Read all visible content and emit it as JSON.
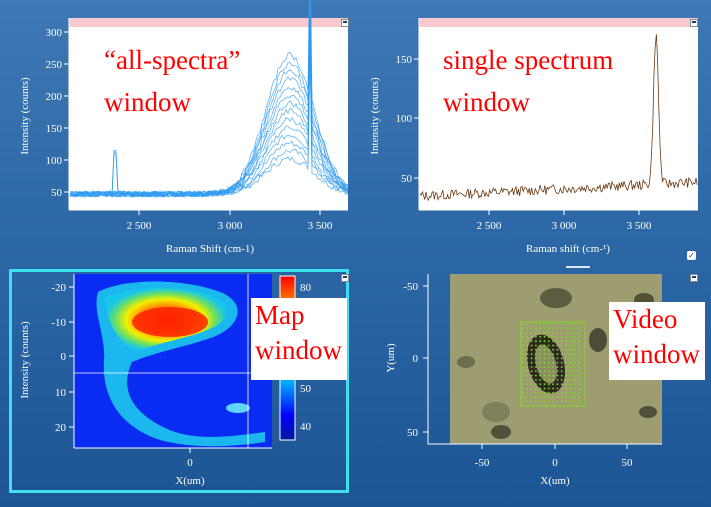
{
  "windows": {
    "all_spectra": {
      "label_line1": "“all-spectra”",
      "label_line2": "window",
      "x_axis_label": "Raman Shift (cm-1)",
      "y_axis_label": "Intensity (counts)",
      "x_ticks": [
        "2 500",
        "3 000",
        "3 500"
      ],
      "y_ticks": [
        "50",
        "100",
        "150",
        "200",
        "250",
        "300"
      ]
    },
    "single_spectrum": {
      "label_line1": "single spectrum",
      "label_line2": "window",
      "x_axis_label": "Raman shift (cm-¹)",
      "y_axis_label": "Intensity (counts)",
      "x_ticks": [
        "2 500",
        "3 000",
        "3 500"
      ],
      "y_ticks": [
        "50",
        "100",
        "150"
      ]
    },
    "map": {
      "label_line1": "Map",
      "label_line2": "window",
      "x_axis_label": "X(um)",
      "y_axis_label": "Intensity (counts)",
      "x_ticks": [
        "0"
      ],
      "y_ticks": [
        "-20",
        "-10",
        "0",
        "10",
        "20"
      ],
      "colorbar_ticks": [
        "80",
        "70",
        "60",
        "50",
        "40"
      ]
    },
    "video": {
      "label_line1": "Video",
      "label_line2": "window",
      "x_axis_label": "X(um)",
      "y_axis_label": "Y(um)",
      "x_ticks": [
        "-50",
        "0",
        "50"
      ],
      "y_ticks": [
        "-50",
        "0",
        "50"
      ]
    }
  },
  "colors": {
    "background": "#2d68a6",
    "overlay_text": "#ff0000",
    "all_spectra_line": "#2f9bf0",
    "single_spectrum_line": "#6b3a12",
    "selected_frame": "#3ee0f0",
    "grid_dots": "#7ddc1f"
  }
}
